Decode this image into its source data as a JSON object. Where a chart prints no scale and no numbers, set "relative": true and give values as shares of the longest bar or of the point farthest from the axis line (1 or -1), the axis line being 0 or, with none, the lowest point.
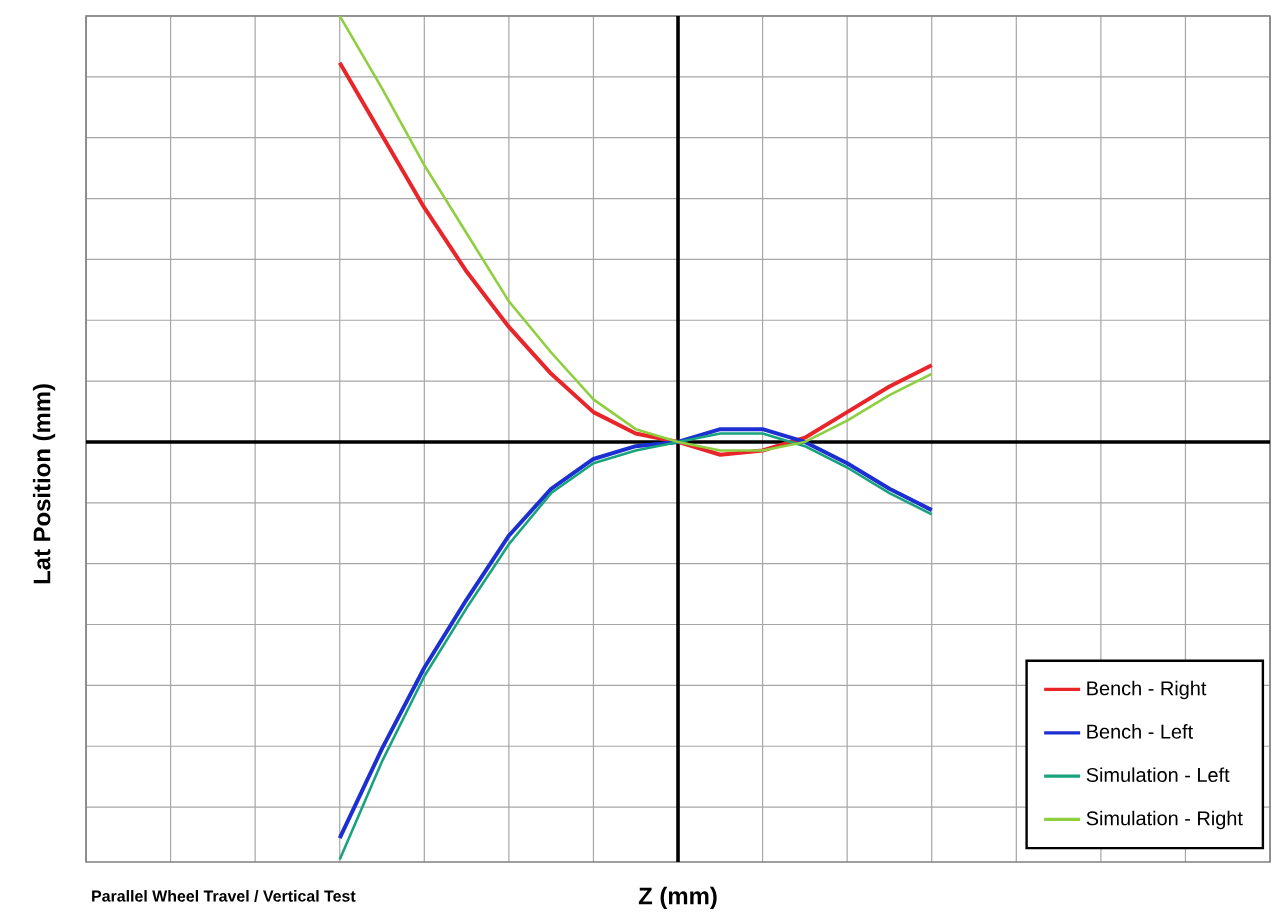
{
  "chart_data": {
    "type": "line",
    "relative": true,
    "xlabel": "Z (mm)",
    "ylabel": "Lat Position (mm)",
    "annotations": [
      "Parallel Wheel Travel / Vertical Test"
    ],
    "categories": [
      null,
      null,
      null,
      null,
      null,
      null,
      null,
      null,
      null,
      null,
      null,
      null,
      null,
      null,
      null,
      null,
      null,
      null,
      null,
      null,
      null,
      null,
      null,
      null,
      null,
      null,
      null,
      null,
      null
    ],
    "series": [
      {
        "name": "Bench - Right",
        "color": "#e8262a",
        "values": [
          null,
          null,
          null,
          null,
          null,
          null,
          0.89,
          0.72,
          0.55,
          0.4,
          0.27,
          0.16,
          0.07,
          0.02,
          0.0,
          -0.03,
          -0.02,
          0.01,
          0.07,
          0.13,
          0.18,
          null,
          null,
          null,
          null,
          null,
          null,
          null,
          null
        ]
      },
      {
        "name": "Bench - Left",
        "color": "#1c2fd0",
        "values": [
          null,
          null,
          null,
          null,
          null,
          null,
          -0.93,
          -0.72,
          -0.53,
          -0.37,
          -0.22,
          -0.11,
          -0.04,
          -0.01,
          0.0,
          0.03,
          0.03,
          0.0,
          -0.05,
          -0.11,
          -0.16,
          null,
          null,
          null,
          null,
          null,
          null,
          null,
          null
        ]
      },
      {
        "name": "Simulation - Left",
        "color": "#19a37c",
        "values": [
          null,
          null,
          null,
          null,
          null,
          null,
          -0.98,
          -0.75,
          -0.55,
          -0.39,
          -0.24,
          -0.12,
          -0.05,
          -0.02,
          0.0,
          0.02,
          0.02,
          -0.01,
          -0.06,
          -0.12,
          -0.17,
          null,
          null,
          null,
          null,
          null,
          null,
          null,
          null
        ]
      },
      {
        "name": "Simulation - Right",
        "color": "#8dcf3f",
        "values": [
          null,
          null,
          null,
          null,
          null,
          null,
          1.0,
          0.83,
          0.65,
          0.49,
          0.33,
          0.21,
          0.1,
          0.03,
          0.0,
          -0.02,
          -0.02,
          0.0,
          0.05,
          0.11,
          0.16,
          null,
          null,
          null,
          null,
          null,
          null,
          null,
          null
        ]
      }
    ],
    "grid": true,
    "legend": "bottom right",
    "marker": "none",
    "line_style": "solid"
  }
}
